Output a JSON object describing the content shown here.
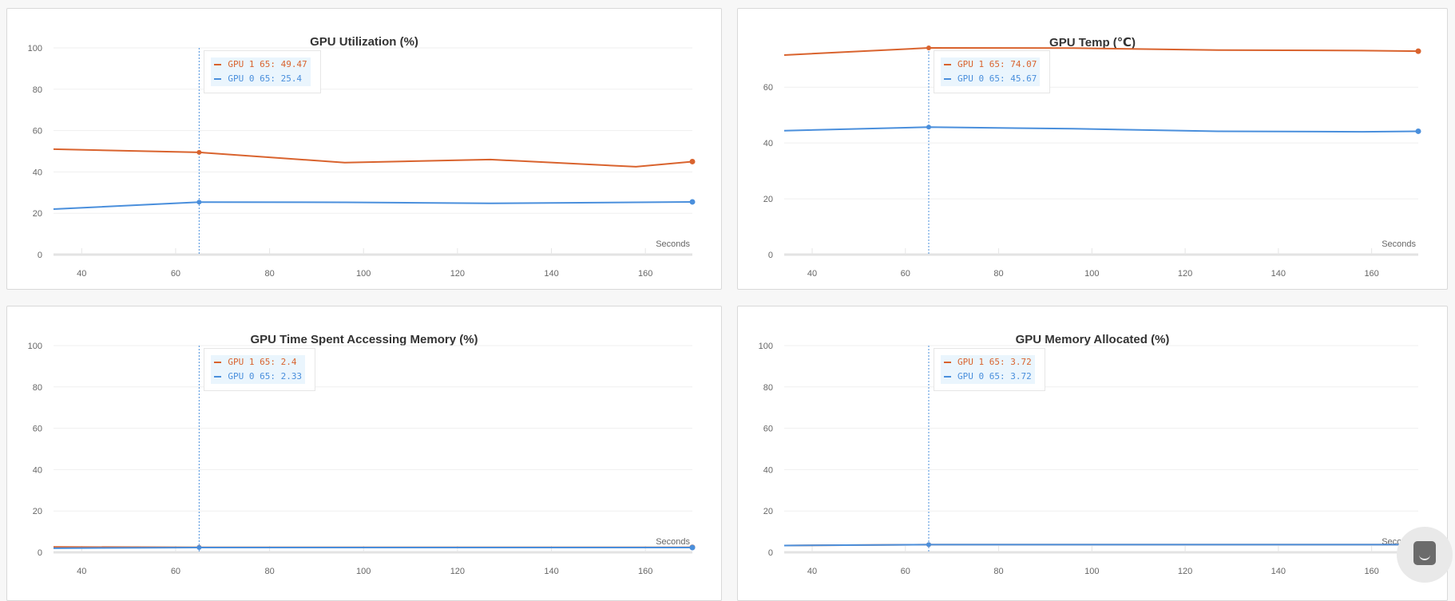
{
  "colors": {
    "gpu1": "#d9632e",
    "gpu0": "#4a8fdc",
    "grid": "#efefef",
    "axis": "#e3e3e3",
    "crosshair": "#4a8fdc"
  },
  "chart_data": [
    {
      "type": "line",
      "title": "GPU Utilization (%)",
      "xlabel": "Seconds",
      "ylabel": "",
      "xlim": [
        34,
        170
      ],
      "ylim": [
        0,
        100
      ],
      "xticks": [
        40,
        60,
        80,
        100,
        120,
        140,
        160
      ],
      "yticks": [
        0,
        20,
        40,
        60,
        80,
        100
      ],
      "grid": true,
      "x": [
        34,
        65,
        96,
        127,
        158,
        170
      ],
      "series": [
        {
          "name": "GPU 1",
          "color": "#d9632e",
          "values": [
            51,
            49.47,
            44.5,
            46,
            42.5,
            45
          ]
        },
        {
          "name": "GPU 0",
          "color": "#4a8fdc",
          "values": [
            22,
            25.4,
            25.3,
            24.8,
            25.3,
            25.5
          ]
        }
      ],
      "hover": {
        "x": 65,
        "rows": [
          "GPU 1 65: 49.47",
          "GPU 0 65: 25.4"
        ]
      }
    },
    {
      "type": "line",
      "title": "GPU Temp (℃)",
      "xlabel": "Seconds",
      "ylabel": "",
      "xlim": [
        34,
        170
      ],
      "ylim": [
        0,
        74.07
      ],
      "xticks": [
        40,
        60,
        80,
        100,
        120,
        140,
        160
      ],
      "yticks": [
        0,
        20,
        40,
        60
      ],
      "grid": true,
      "x": [
        34,
        65,
        96,
        127,
        158,
        170
      ],
      "series": [
        {
          "name": "GPU 1",
          "color": "#d9632e",
          "values": [
            71.5,
            74.07,
            74.0,
            73.3,
            73.1,
            72.9
          ]
        },
        {
          "name": "GPU 0",
          "color": "#4a8fdc",
          "values": [
            44.4,
            45.67,
            45.1,
            44.2,
            44.0,
            44.2
          ]
        }
      ],
      "hover": {
        "x": 65,
        "rows": [
          "GPU 1 65: 74.07",
          "GPU 0 65: 45.67"
        ]
      }
    },
    {
      "type": "line",
      "title": "GPU Time Spent Accessing Memory (%)",
      "xlabel": "Seconds",
      "ylabel": "",
      "xlim": [
        34,
        170
      ],
      "ylim": [
        0,
        100
      ],
      "xticks": [
        40,
        60,
        80,
        100,
        120,
        140,
        160
      ],
      "yticks": [
        0,
        20,
        40,
        60,
        80,
        100
      ],
      "grid": true,
      "x": [
        34,
        65,
        96,
        127,
        158,
        170
      ],
      "series": [
        {
          "name": "GPU 1",
          "color": "#d9632e",
          "values": [
            2.6,
            2.4,
            2.4,
            2.4,
            2.4,
            2.4
          ]
        },
        {
          "name": "GPU 0",
          "color": "#4a8fdc",
          "values": [
            2.0,
            2.33,
            2.3,
            2.3,
            2.3,
            2.3
          ]
        }
      ],
      "hover": {
        "x": 65,
        "rows": [
          "GPU 1 65: 2.4",
          "GPU 0 65: 2.33"
        ]
      }
    },
    {
      "type": "line",
      "title": "GPU Memory Allocated (%)",
      "xlabel": "Seconds",
      "ylabel": "",
      "xlim": [
        34,
        170
      ],
      "ylim": [
        0,
        100
      ],
      "xticks": [
        40,
        60,
        80,
        100,
        120,
        140,
        160
      ],
      "yticks": [
        0,
        20,
        40,
        60,
        80,
        100
      ],
      "grid": true,
      "x": [
        34,
        65,
        96,
        127,
        158,
        170
      ],
      "series": [
        {
          "name": "GPU 1",
          "color": "#d9632e",
          "values": [
            3.3,
            3.72,
            3.72,
            3.72,
            3.72,
            3.72
          ]
        },
        {
          "name": "GPU 0",
          "color": "#4a8fdc",
          "values": [
            3.3,
            3.72,
            3.72,
            3.72,
            3.72,
            3.72
          ]
        }
      ],
      "hover": {
        "x": 65,
        "rows": [
          "GPU 1 65: 3.72",
          "GPU 0 65: 3.72"
        ]
      }
    }
  ],
  "chat_widget": {
    "icon": "chat-bubble-icon"
  }
}
